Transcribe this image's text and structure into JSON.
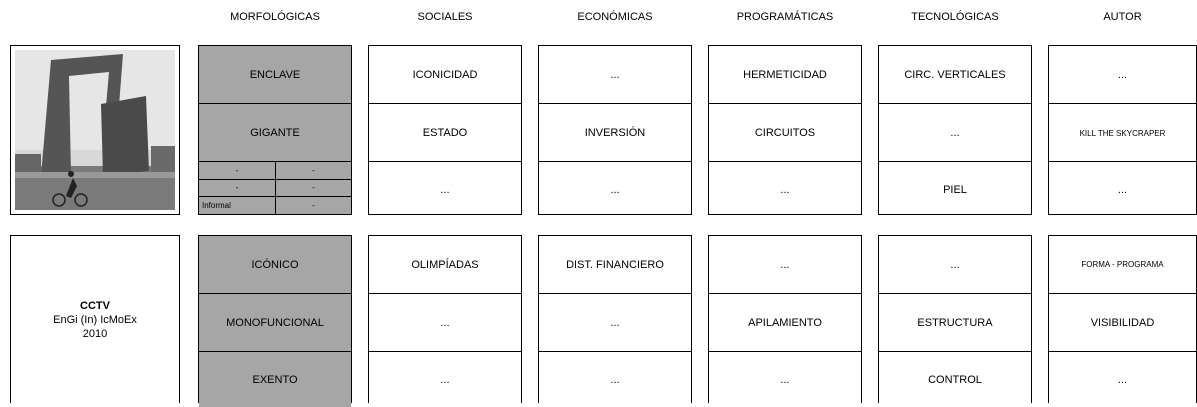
{
  "headers": [
    "MORFOLÓGICAS",
    "SOCIALES",
    "ECONÓMICAS",
    "PROGRAMÁTICAS",
    "TECNOLÓGICAS",
    "AUTOR"
  ],
  "blocks": [
    {
      "morph": [
        "ENCLAVE",
        "GIGANTE"
      ],
      "morph_grid": [
        [
          "-",
          "-"
        ],
        [
          "-",
          "-"
        ],
        [
          "Informal",
          "-"
        ]
      ],
      "rows": [
        [
          "ICONICIDAD",
          "...",
          "HERMETICIDAD",
          "CIRC. VERTICALES",
          "..."
        ],
        [
          "ESTADO",
          "INVERSIÓN",
          "CIRCUITOS",
          "...",
          "KILL THE SKYCRAPER"
        ],
        [
          "...",
          "...",
          "...",
          "PIEL",
          "..."
        ]
      ]
    },
    {
      "caption": {
        "title": "CCTV",
        "subtitle": "EnGi (In) IcMoEx",
        "year": "2010"
      },
      "morph": [
        "ICÓNICO",
        "MONOFUNCIONAL",
        "EXENTO"
      ],
      "rows": [
        [
          "OLIMPÍADAS",
          "DIST. FINANCIERO",
          "...",
          "...",
          "FORMA - PROGRAMA"
        ],
        [
          "...",
          "...",
          "APILAMIENTO",
          "ESTRUCTURA",
          "VISIBILIDAD"
        ],
        [
          "...",
          "...",
          "...",
          "CONTROL",
          "..."
        ]
      ]
    }
  ]
}
